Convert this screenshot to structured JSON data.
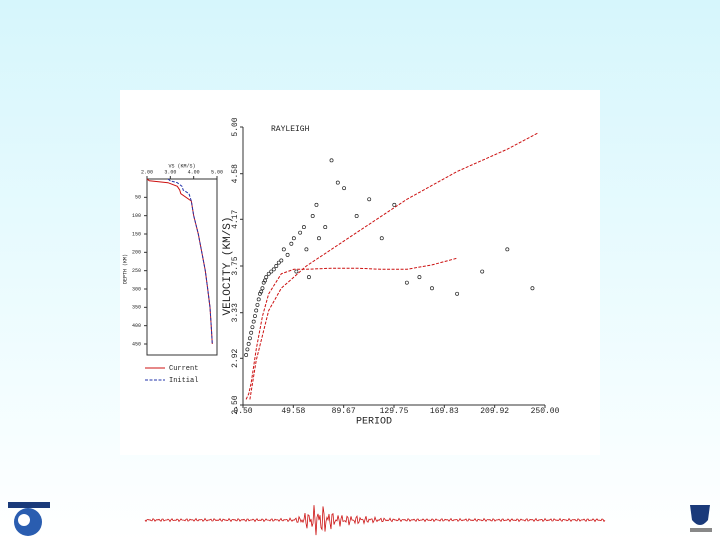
{
  "chart_data": [
    {
      "type": "scatter",
      "title": "RAYLEIGH",
      "x_label": "PERIOD",
      "y_label": "VELOCITY (KM/S)",
      "xlim": [
        9.5,
        250
      ],
      "ylim": [
        2.5,
        5
      ],
      "xticks": [
        {
          "value": 9.5,
          "label": "9.50"
        },
        49.58,
        89.67,
        129.75,
        169.83,
        209.92,
        {
          "value": 250,
          "label": "250.00"
        }
      ],
      "yticks": [
        {
          "value": 2.5,
          "label": "2.50"
        },
        2.92,
        3.33,
        3.75,
        4.17,
        4.58,
        {
          "value": 5,
          "label": "5.00"
        }
      ],
      "series": [
        {
          "mode": "markers",
          "color": "#222222",
          "x": [
            12,
            13,
            14,
            15,
            16,
            17,
            18,
            19,
            20,
            21,
            22,
            23,
            24,
            25,
            26,
            27,
            28,
            30,
            32,
            34,
            36,
            38,
            40,
            42,
            45,
            48,
            50,
            52,
            55,
            58,
            60,
            62,
            65,
            68,
            70,
            75,
            80,
            85,
            90,
            100,
            110,
            120,
            130,
            140,
            150,
            160,
            180,
            200,
            220,
            240
          ],
          "values": [
            2.95,
            3.0,
            3.05,
            3.1,
            3.15,
            3.2,
            3.25,
            3.3,
            3.35,
            3.4,
            3.45,
            3.5,
            3.52,
            3.55,
            3.6,
            3.62,
            3.65,
            3.68,
            3.7,
            3.72,
            3.75,
            3.78,
            3.8,
            3.9,
            3.85,
            3.95,
            4.0,
            3.7,
            4.05,
            4.1,
            3.9,
            3.65,
            4.2,
            4.3,
            4.0,
            4.1,
            4.7,
            4.5,
            4.45,
            4.2,
            4.35,
            4.0,
            4.3,
            3.6,
            3.65,
            3.55,
            3.5,
            3.7,
            3.9,
            3.55
          ]
        },
        {
          "mode": "line",
          "color": "#cc1111",
          "x": [
            15,
            20,
            30,
            40,
            60,
            80,
            100,
            140,
            180,
            220,
            245
          ],
          "values": [
            2.55,
            2.9,
            3.35,
            3.55,
            3.75,
            3.9,
            4.05,
            4.35,
            4.6,
            4.8,
            4.95
          ]
        },
        {
          "mode": "line",
          "color": "#cc1111",
          "x": [
            12,
            14,
            16,
            20,
            25,
            30,
            40,
            50,
            60,
            80,
            100,
            120,
            140,
            160,
            180
          ],
          "values": [
            2.55,
            2.6,
            2.7,
            3.0,
            3.3,
            3.5,
            3.68,
            3.72,
            3.72,
            3.73,
            3.73,
            3.72,
            3.72,
            3.76,
            3.82
          ]
        }
      ]
    },
    {
      "type": "line",
      "x_label": "VS (KM/S)",
      "y_label": "DEPTH (KM)",
      "y_inverted": true,
      "xlim": [
        2,
        5
      ],
      "ylim": [
        0,
        480
      ],
      "xticks": [
        {
          "value": 2,
          "label": "2.00"
        },
        {
          "value": 3,
          "label": "3.00"
        },
        {
          "value": 4,
          "label": "4.00"
        },
        {
          "value": 5,
          "label": "5.00"
        }
      ],
      "yticks": [
        50,
        100,
        150,
        200,
        250,
        300,
        350,
        400,
        450
      ],
      "series": [
        {
          "name": "Current",
          "color": "#cc1111",
          "dash": false,
          "x": [
            2.0,
            2.1,
            2.9,
            3.3,
            3.4,
            3.45,
            3.9,
            4.0,
            4.2,
            4.35,
            4.5,
            4.6,
            4.7,
            4.75,
            4.8
          ],
          "values": [
            0,
            5,
            10,
            20,
            30,
            40,
            60,
            100,
            150,
            200,
            250,
            300,
            350,
            400,
            450
          ]
        },
        {
          "name": "Initial",
          "color": "#2233aa",
          "dash": true,
          "x": [
            2.9,
            3.0,
            3.3,
            3.5,
            3.55,
            3.8,
            3.9,
            4.0,
            4.2,
            4.35,
            4.5,
            4.6,
            4.7,
            4.75,
            4.8
          ],
          "values": [
            0,
            5,
            10,
            20,
            30,
            40,
            60,
            100,
            150,
            200,
            250,
            300,
            350,
            400,
            450
          ]
        }
      ]
    }
  ]
}
